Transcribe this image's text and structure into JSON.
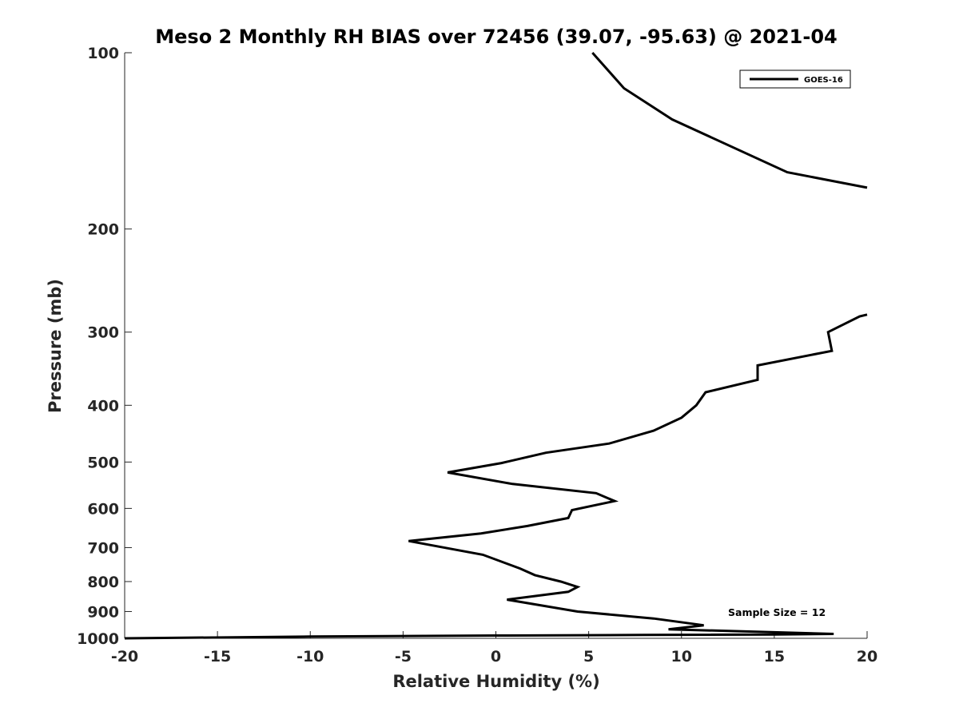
{
  "chart_data": {
    "type": "line",
    "title": "Meso 2 Monthly RH BIAS over 72456 (39.07, -95.63) @ 2021-04",
    "xlabel": "Relative Humidity (%)",
    "ylabel": "Pressure (mb)",
    "xlim": [
      -20,
      20
    ],
    "ylim": [
      100,
      1000
    ],
    "y_scale": "log",
    "y_direction": "reversed",
    "x_ticks": [
      -20,
      -15,
      -10,
      -5,
      0,
      5,
      10,
      15,
      20
    ],
    "x_tick_labels": [
      "-20",
      "-15",
      "-10",
      "-5",
      "0",
      "5",
      "10",
      "15",
      "20"
    ],
    "y_ticks": [
      100,
      200,
      300,
      400,
      500,
      600,
      700,
      800,
      900,
      1000
    ],
    "y_tick_labels": [
      "100",
      "200",
      "300",
      "400",
      "500",
      "600",
      "700",
      "800",
      "900",
      "1000"
    ],
    "grid": false,
    "legend": {
      "position": "top-right",
      "entries": [
        "GOES-16"
      ]
    },
    "annotations": [
      {
        "text": "Sample Size = 12",
        "position": "lower-right"
      }
    ],
    "series": [
      {
        "name": "GOES-16",
        "color": "#000000",
        "segments": [
          {
            "x": [
              5.2,
              6.9,
              9.5,
              15.7,
              20.0
            ],
            "y": [
              100,
              115,
              130,
              160,
              170
            ]
          },
          {
            "x": [
              20.0,
              19.6,
              17.9,
              18.1,
              14.1,
              14.1,
              11.3,
              10.8,
              10.0,
              8.5,
              6.1,
              2.7,
              0.3,
              -2.6,
              0.9,
              5.4,
              6.4,
              4.1,
              3.9,
              1.7,
              -0.8,
              -4.7,
              -0.7,
              1.3,
              2.1,
              3.5,
              4.4,
              3.9,
              0.6,
              4.4,
              8.5,
              11.2,
              9.3,
              18.2,
              15.0,
              8.0,
              0.0,
              -10.0,
              -20.0
            ],
            "y": [
              280,
              282,
              300,
              323,
              342,
              362,
              380,
              400,
              420,
              442,
              465,
              482,
              502,
              521,
              545,
              565,
              583,
              604,
              623,
              643,
              662,
              682,
              720,
              760,
              780,
              800,
              817,
              833,
              859,
              900,
              925,
              950,
              965,
              983,
              985,
              987,
              989,
              993,
              1000
            ]
          }
        ]
      }
    ]
  }
}
